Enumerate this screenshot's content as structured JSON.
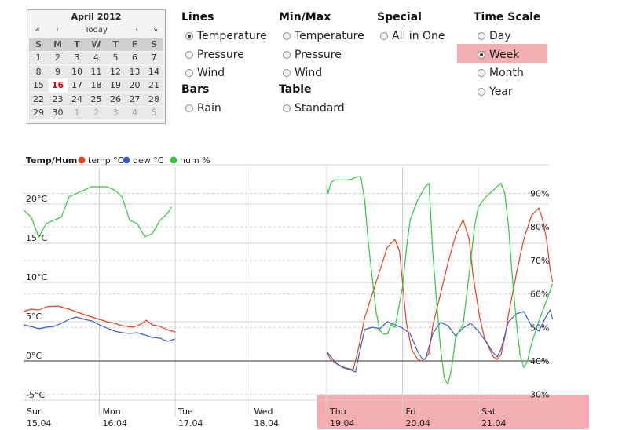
{
  "calendar": {
    "title": "April 2012",
    "nav": {
      "prev_year": "«",
      "prev_month": "‹",
      "today": "Today",
      "next_month": "›",
      "next_year": "»"
    },
    "weekdays": [
      "S",
      "M",
      "T",
      "W",
      "T",
      "F",
      "S"
    ],
    "weeks": [
      [
        "1",
        "2",
        "3",
        "4",
        "5",
        "6",
        "7"
      ],
      [
        "8",
        "9",
        "10",
        "11",
        "12",
        "13",
        "14"
      ],
      [
        "15",
        "16",
        "17",
        "18",
        "19",
        "20",
        "21"
      ],
      [
        "22",
        "23",
        "24",
        "25",
        "26",
        "27",
        "28"
      ],
      [
        "29",
        "30",
        "1",
        "2",
        "3",
        "4",
        "5"
      ]
    ],
    "selected": "16"
  },
  "options": {
    "lines": {
      "title": "Lines",
      "items": [
        "Temperature",
        "Pressure",
        "Wind"
      ],
      "selected": "Temperature"
    },
    "bars": {
      "title": "Bars",
      "items": [
        "Rain"
      ]
    },
    "minmax": {
      "title": "Min/Max",
      "items": [
        "Temperature",
        "Pressure",
        "Wind"
      ]
    },
    "table": {
      "title": "Table",
      "items": [
        "Standard"
      ]
    },
    "special": {
      "title": "Special",
      "items": [
        "All in One"
      ]
    },
    "timescale": {
      "title": "Time Scale",
      "items": [
        "Day",
        "Week",
        "Month",
        "Year"
      ],
      "selected": "Week"
    }
  },
  "colors": {
    "temp": "#e8401c",
    "dew": "#3a5fcc",
    "hum": "#2ec83a",
    "highlight": "#f4adb1"
  },
  "chart_data": {
    "type": "line",
    "title": "Temp/Hum",
    "legend": [
      "temp °C",
      "dew °C",
      "hum %"
    ],
    "legend_position": "top-left",
    "grid": true,
    "x_days": [
      {
        "day": "Sun",
        "date": "15.04"
      },
      {
        "day": "Mon",
        "date": "16.04"
      },
      {
        "day": "Tue",
        "date": "17.04"
      },
      {
        "day": "Wed",
        "date": "18.04"
      },
      {
        "day": "Thu",
        "date": "19.04"
      },
      {
        "day": "Fri",
        "date": "20.04"
      },
      {
        "day": "Sat",
        "date": "21.04"
      }
    ],
    "y_left": {
      "label_unit": "°C",
      "ylim": [
        -5,
        25
      ],
      "ticks": [
        "-5°C",
        "0°C",
        "5°C",
        "10°C",
        "15°C",
        "20°C"
      ]
    },
    "y_right": {
      "label_unit": "%",
      "ylim": [
        25,
        95
      ],
      "ticks": [
        "30%",
        "40%",
        "50%",
        "60%",
        "70%",
        "80%",
        "90%"
      ]
    },
    "series": [
      {
        "name": "temp °C",
        "axis": "left",
        "segments": [
          [
            [
              0,
              6.3
            ],
            [
              0.1,
              6.6
            ],
            [
              0.2,
              6.5
            ],
            [
              0.3,
              6.9
            ],
            [
              0.45,
              7.0
            ],
            [
              0.6,
              6.6
            ],
            [
              0.8,
              5.9
            ],
            [
              0.9,
              5.6
            ],
            [
              1.0,
              5.3
            ],
            [
              1.1,
              5.0
            ],
            [
              1.2,
              4.8
            ],
            [
              1.3,
              4.5
            ],
            [
              1.45,
              4.3
            ],
            [
              1.55,
              4.7
            ],
            [
              1.62,
              5.2
            ],
            [
              1.7,
              4.6
            ],
            [
              1.8,
              4.4
            ],
            [
              1.92,
              3.9
            ],
            [
              2.0,
              3.7
            ]
          ],
          [
            [
              4.0,
              1.2
            ],
            [
              4.05,
              0.2
            ],
            [
              4.15,
              -0.5
            ],
            [
              4.25,
              -0.9
            ],
            [
              4.3,
              -1.0
            ],
            [
              4.35,
              -1.1
            ],
            [
              4.4,
              0.8
            ],
            [
              4.45,
              3.0
            ],
            [
              4.5,
              5.5
            ],
            [
              4.6,
              8.5
            ],
            [
              4.7,
              11.5
            ],
            [
              4.8,
              14.5
            ],
            [
              4.9,
              15.5
            ],
            [
              4.96,
              14.0
            ],
            [
              5.0,
              10.0
            ],
            [
              5.05,
              5.0
            ],
            [
              5.12,
              1.5
            ],
            [
              5.2,
              0.2
            ],
            [
              5.25,
              0.0
            ],
            [
              5.3,
              0.3
            ],
            [
              5.35,
              1.0
            ],
            [
              5.4,
              4.5
            ],
            [
              5.5,
              8.5
            ],
            [
              5.6,
              12.5
            ],
            [
              5.7,
              16.0
            ],
            [
              5.8,
              18.0
            ],
            [
              5.88,
              15.5
            ],
            [
              5.93,
              11.0
            ],
            [
              5.97,
              8.5
            ],
            [
              6.02,
              5.5
            ],
            [
              6.08,
              3.0
            ],
            [
              6.15,
              1.5
            ],
            [
              6.2,
              0.5
            ],
            [
              6.25,
              0.2
            ],
            [
              6.3,
              0.8
            ],
            [
              6.35,
              3.0
            ],
            [
              6.4,
              6.0
            ],
            [
              6.5,
              11.0
            ],
            [
              6.6,
              15.5
            ],
            [
              6.7,
              18.5
            ],
            [
              6.8,
              19.5
            ],
            [
              6.85,
              18.0
            ],
            [
              6.9,
              15.5
            ],
            [
              6.95,
              11.5
            ],
            [
              6.98,
              10.0
            ]
          ]
        ]
      },
      {
        "name": "dew °C",
        "axis": "left",
        "segments": [
          [
            [
              0,
              4.6
            ],
            [
              0.1,
              4.4
            ],
            [
              0.2,
              4.1
            ],
            [
              0.3,
              4.3
            ],
            [
              0.4,
              4.4
            ],
            [
              0.5,
              4.8
            ],
            [
              0.6,
              5.3
            ],
            [
              0.7,
              5.6
            ],
            [
              0.8,
              5.3
            ],
            [
              0.9,
              5.1
            ],
            [
              1.0,
              4.6
            ],
            [
              1.1,
              4.2
            ],
            [
              1.2,
              3.8
            ],
            [
              1.3,
              3.6
            ],
            [
              1.4,
              3.5
            ],
            [
              1.5,
              3.6
            ],
            [
              1.6,
              3.3
            ],
            [
              1.7,
              3.0
            ],
            [
              1.8,
              2.9
            ],
            [
              1.9,
              2.5
            ],
            [
              2.0,
              2.8
            ]
          ],
          [
            [
              4.0,
              1.2
            ],
            [
              4.1,
              0.0
            ],
            [
              4.2,
              -0.8
            ],
            [
              4.3,
              -1.1
            ],
            [
              4.38,
              -1.4
            ],
            [
              4.42,
              0.5
            ],
            [
              4.5,
              4.0
            ],
            [
              4.6,
              4.3
            ],
            [
              4.7,
              4.1
            ],
            [
              4.8,
              5.0
            ],
            [
              4.9,
              4.6
            ],
            [
              5.0,
              4.2
            ],
            [
              5.1,
              3.5
            ],
            [
              5.2,
              1.2
            ],
            [
              5.25,
              0.4
            ],
            [
              5.3,
              0.2
            ],
            [
              5.35,
              1.8
            ],
            [
              5.4,
              3.5
            ],
            [
              5.5,
              4.9
            ],
            [
              5.6,
              4.5
            ],
            [
              5.7,
              3.2
            ],
            [
              5.8,
              4.2
            ],
            [
              5.9,
              4.8
            ],
            [
              6.0,
              3.8
            ],
            [
              6.1,
              2.5
            ],
            [
              6.2,
              1.0
            ],
            [
              6.25,
              0.5
            ],
            [
              6.3,
              1.5
            ],
            [
              6.4,
              5.0
            ],
            [
              6.5,
              6.0
            ],
            [
              6.6,
              6.3
            ],
            [
              6.7,
              4.5
            ],
            [
              6.8,
              3.8
            ],
            [
              6.9,
              5.8
            ],
            [
              6.95,
              6.5
            ],
            [
              6.98,
              5.3
            ]
          ]
        ]
      },
      {
        "name": "hum %",
        "axis": "right",
        "segments": [
          [
            [
              0,
              85
            ],
            [
              0.1,
              83
            ],
            [
              0.2,
              77
            ],
            [
              0.25,
              79
            ],
            [
              0.3,
              81
            ],
            [
              0.4,
              82
            ],
            [
              0.5,
              83
            ],
            [
              0.6,
              89
            ],
            [
              0.7,
              90
            ],
            [
              0.8,
              91
            ],
            [
              0.9,
              92
            ],
            [
              1.0,
              92
            ],
            [
              1.1,
              92
            ],
            [
              1.2,
              91
            ],
            [
              1.3,
              89
            ],
            [
              1.4,
              82
            ],
            [
              1.5,
              81
            ],
            [
              1.6,
              77
            ],
            [
              1.7,
              78
            ],
            [
              1.8,
              82
            ],
            [
              1.9,
              84
            ],
            [
              1.95,
              86
            ]
          ],
          [
            [
              4.0,
              92
            ],
            [
              4.02,
              90
            ],
            [
              4.05,
              93
            ],
            [
              4.1,
              94
            ],
            [
              4.3,
              94
            ],
            [
              4.4,
              95
            ],
            [
              4.45,
              95
            ],
            [
              4.5,
              88
            ],
            [
              4.55,
              75
            ],
            [
              4.6,
              65
            ],
            [
              4.65,
              55
            ],
            [
              4.7,
              49
            ],
            [
              4.75,
              48
            ],
            [
              4.8,
              48
            ],
            [
              4.85,
              51
            ],
            [
              4.9,
              50
            ],
            [
              5.0,
              62
            ],
            [
              5.05,
              73
            ],
            [
              5.1,
              82
            ],
            [
              5.2,
              88
            ],
            [
              5.3,
              92
            ],
            [
              5.35,
              93
            ],
            [
              5.4,
              72
            ],
            [
              5.45,
              58
            ],
            [
              5.5,
              44
            ],
            [
              5.55,
              35
            ],
            [
              5.6,
              33
            ],
            [
              5.65,
              38
            ],
            [
              5.7,
              47
            ],
            [
              5.8,
              51
            ],
            [
              5.9,
              70
            ],
            [
              5.95,
              80
            ],
            [
              6.0,
              86
            ],
            [
              6.1,
              89
            ],
            [
              6.2,
              91
            ],
            [
              6.3,
              93
            ],
            [
              6.35,
              90
            ],
            [
              6.4,
              80
            ],
            [
              6.45,
              65
            ],
            [
              6.5,
              52
            ],
            [
              6.55,
              42
            ],
            [
              6.6,
              38
            ],
            [
              6.65,
              40
            ],
            [
              6.7,
              45
            ],
            [
              6.8,
              52
            ],
            [
              6.9,
              58
            ],
            [
              6.98,
              63
            ]
          ]
        ]
      }
    ]
  }
}
